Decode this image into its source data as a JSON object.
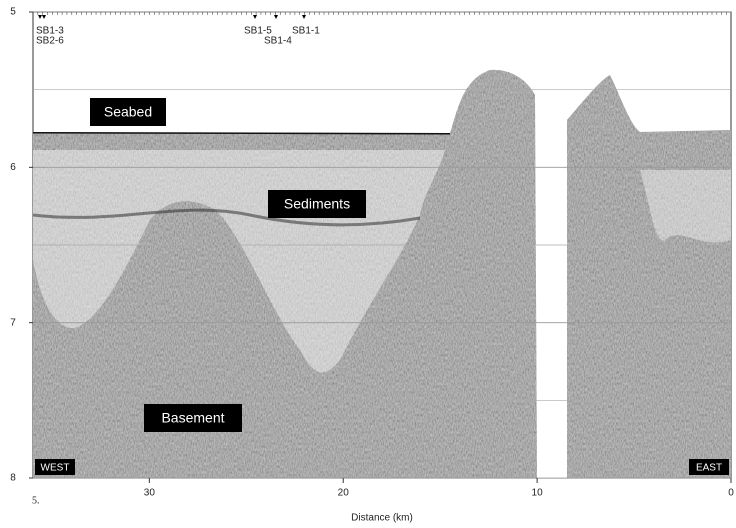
{
  "figure_label": "5.",
  "axes": {
    "x_label": "Distance (km)",
    "xlim": [
      36,
      0
    ],
    "xticks": [
      30,
      20,
      10,
      0
    ],
    "ylim": [
      5,
      8
    ],
    "yticks": [
      5,
      6,
      7,
      8
    ]
  },
  "stations": [
    "SB1-3",
    "SB2-6",
    "SB1-5",
    "SB1-4",
    "SB1-1"
  ],
  "annotations": {
    "seabed": "Seabed",
    "sediments": "Sediments",
    "basement": "Basement",
    "west": "WEST",
    "east": "EAST"
  }
}
